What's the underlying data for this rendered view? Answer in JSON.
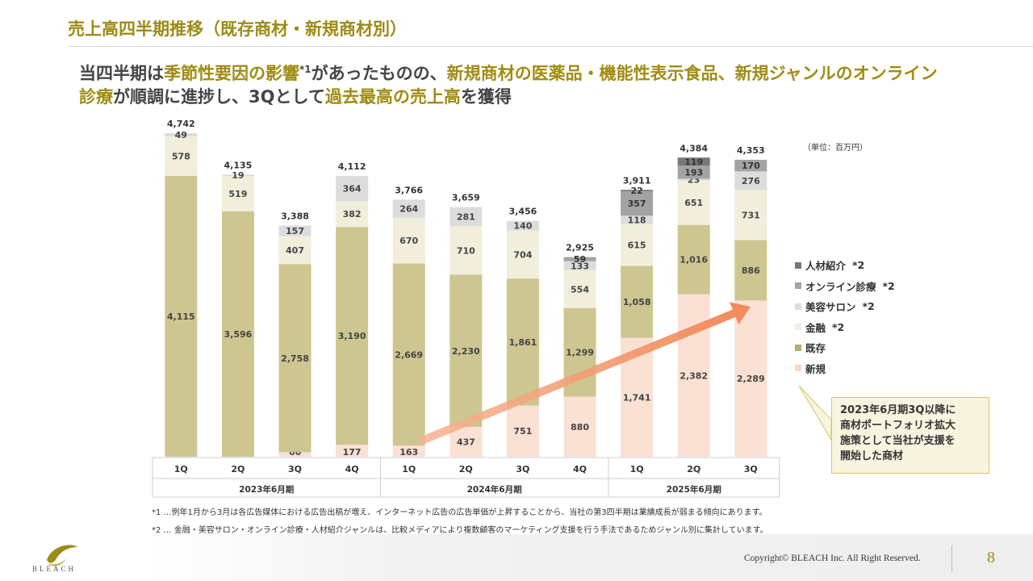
{
  "header": {
    "title": "売上高四半期推移（既存商材・新規商材別）",
    "subtitle_parts": [
      {
        "text": "当四半期は",
        "hl": false
      },
      {
        "text": "季節性要因の影響",
        "hl": true
      },
      {
        "text": "*1",
        "sup": true
      },
      {
        "text": "があったものの、",
        "hl": false
      },
      {
        "text": "新規商材の医薬品・機能性表示食品、新規ジャンルのオンライン診療",
        "hl": true
      },
      {
        "text": "が順調に進捗し、3Qとして",
        "hl": false
      },
      {
        "text": "過去最高の売上高",
        "hl": true
      },
      {
        "text": "を獲得",
        "hl": false
      }
    ]
  },
  "unit_label": "（単位：百万円）",
  "chart_data": {
    "type": "bar",
    "stacked": true,
    "categories": [
      "1Q",
      "2Q",
      "3Q",
      "4Q",
      "1Q",
      "2Q",
      "3Q",
      "4Q",
      "1Q",
      "2Q",
      "3Q"
    ],
    "groups": [
      {
        "label": "2023年6月期",
        "count": 4
      },
      {
        "label": "2024年6月期",
        "count": 4
      },
      {
        "label": "2025年6月期",
        "count": 3
      }
    ],
    "series": [
      {
        "name": "新規",
        "color": "#fbe0d4",
        "values": [
          0,
          0,
          66,
          177,
          163,
          437,
          751,
          880,
          1741,
          2382,
          2289
        ]
      },
      {
        "name": "既存",
        "color": "#cdc690",
        "values": [
          4115,
          3596,
          2758,
          3190,
          2669,
          2230,
          1861,
          1299,
          1058,
          1016,
          886
        ]
      },
      {
        "name": "金融 *2",
        "color": "#f1efdc",
        "values": [
          578,
          519,
          407,
          382,
          670,
          710,
          704,
          554,
          615,
          651,
          731
        ]
      },
      {
        "name": "美容サロン *2",
        "color": "#dcdcdc",
        "values": [
          49,
          19,
          157,
          364,
          264,
          281,
          140,
          133,
          118,
          23,
          276
        ]
      },
      {
        "name": "オンライン診療 *2",
        "color": "#a3a3a3",
        "values": [
          0,
          0,
          0,
          0,
          0,
          0,
          0,
          59,
          357,
          193,
          170
        ]
      },
      {
        "name": "人材紹介 *2",
        "color": "#787878",
        "values": [
          0,
          0,
          0,
          0,
          0,
          0,
          0,
          0,
          22,
          119,
          0
        ]
      }
    ],
    "labels": [
      [
        "",
        "",
        "66",
        "177",
        "163",
        "437",
        "751",
        "880",
        "1,741",
        "2,382",
        "2,289"
      ],
      [
        "4,115",
        "3,596",
        "2,758",
        "3,190",
        "2,669",
        "2,230",
        "1,861",
        "1,299",
        "1,058",
        "1,016",
        "886"
      ],
      [
        "578",
        "519",
        "407",
        "382",
        "670",
        "710",
        "704",
        "554",
        "615",
        "651",
        "731"
      ],
      [
        "49",
        "19",
        "157",
        "364",
        "264",
        "281",
        "140",
        "133",
        "118",
        "23",
        "276"
      ],
      [
        "",
        "",
        "",
        "",
        "",
        "",
        "",
        "59",
        "357",
        "193",
        "170"
      ],
      [
        "",
        "",
        "",
        "",
        "",
        "",
        "",
        "",
        "22",
        "119",
        ""
      ]
    ],
    "totals": [
      "4,742",
      "4,135",
      "3,388",
      "4,112",
      "3,766",
      "3,659",
      "3,456",
      "2,925",
      "3,911",
      "4,384",
      "4,353"
    ],
    "ylim": [
      0,
      4742
    ]
  },
  "legend": [
    {
      "label": "人材紹介",
      "note": "*2",
      "color": "#787878"
    },
    {
      "label": "オンライン診療",
      "note": "*2",
      "color": "#a3a3a3"
    },
    {
      "label": "美容サロン",
      "note": "*2",
      "color": "#dcdcdc"
    },
    {
      "label": "金融",
      "note": "*2",
      "color": "#f1efdc"
    },
    {
      "label": "既存",
      "note": "",
      "color": "#b3ad73"
    },
    {
      "label": "新規",
      "note": "",
      "color": "#f9d8c8"
    }
  ],
  "callout": {
    "lines": [
      "2023年6月期3Q以降に",
      "商材ポートフォリオ拡大",
      "施策として当社が支援を",
      "開始した商材"
    ]
  },
  "footnotes": {
    "note1": "*1 …例年1月から3月は各広告媒体における広告出稿が増え、インターネット広告の広告単価が上昇することから、当社の第3四半期は業績成長が弱まる傾向にあります。",
    "note2": "*2 … 金融・美容サロン・オンライン診療・人材紹介ジャンルは、比較メディアにより複数顧客のマーケティング支援を行う手法であるためジャンル別に集計しています。"
  },
  "footer": {
    "copyright": "Copyright© BLEACH Inc. All Right Reserved.",
    "page_number": "8",
    "logo_text": "BLEACH"
  }
}
